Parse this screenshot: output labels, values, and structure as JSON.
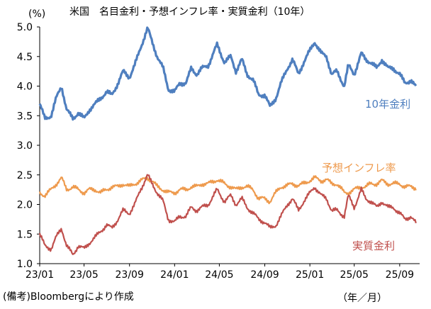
{
  "chart_data": {
    "type": "line",
    "title": "米国　名目金利・予想インフレ率・実質金利（10年）",
    "unit": "(%)",
    "source": "(備考)Bloombergにより作成",
    "xlabel": "（年／月）",
    "ylabel": "",
    "ylim": [
      1.0,
      5.0
    ],
    "yticks": [
      "5.0",
      "4.5",
      "4.0",
      "3.5",
      "3.0",
      "2.5",
      "2.0",
      "1.5",
      "1.0"
    ],
    "xticks": [
      "23/01",
      "23/05",
      "23/09",
      "24/01",
      "24/05",
      "24/09",
      "25/01",
      "25/05",
      "25/09"
    ],
    "grid": false,
    "series": [
      {
        "name": "10年金利",
        "color": "#4F7FBF",
        "points": [
          [
            "2023-01-01",
            3.7
          ],
          [
            "2023-01-15",
            3.45
          ],
          [
            "2023-02-01",
            3.5
          ],
          [
            "2023-02-15",
            3.8
          ],
          [
            "2023-03-01",
            4.0
          ],
          [
            "2023-03-15",
            3.6
          ],
          [
            "2023-04-01",
            3.45
          ],
          [
            "2023-04-15",
            3.55
          ],
          [
            "2023-05-01",
            3.45
          ],
          [
            "2023-05-15",
            3.6
          ],
          [
            "2023-06-01",
            3.7
          ],
          [
            "2023-06-15",
            3.8
          ],
          [
            "2023-07-01",
            3.9
          ],
          [
            "2023-07-15",
            3.85
          ],
          [
            "2023-08-01",
            4.05
          ],
          [
            "2023-08-15",
            4.25
          ],
          [
            "2023-09-01",
            4.15
          ],
          [
            "2023-09-15",
            4.35
          ],
          [
            "2023-10-01",
            4.65
          ],
          [
            "2023-10-20",
            4.98
          ],
          [
            "2023-11-01",
            4.75
          ],
          [
            "2023-11-15",
            4.5
          ],
          [
            "2023-12-01",
            4.3
          ],
          [
            "2023-12-15",
            3.95
          ],
          [
            "2024-01-01",
            3.9
          ],
          [
            "2024-01-15",
            4.05
          ],
          [
            "2024-02-01",
            4.05
          ],
          [
            "2024-02-15",
            4.3
          ],
          [
            "2024-03-01",
            4.2
          ],
          [
            "2024-03-15",
            4.3
          ],
          [
            "2024-04-01",
            4.35
          ],
          [
            "2024-04-25",
            4.7
          ],
          [
            "2024-05-15",
            4.4
          ],
          [
            "2024-06-01",
            4.5
          ],
          [
            "2024-06-15",
            4.25
          ],
          [
            "2024-07-01",
            4.45
          ],
          [
            "2024-07-15",
            4.2
          ],
          [
            "2024-08-01",
            4.1
          ],
          [
            "2024-08-15",
            3.85
          ],
          [
            "2024-09-01",
            3.85
          ],
          [
            "2024-09-15",
            3.65
          ],
          [
            "2024-10-01",
            3.8
          ],
          [
            "2024-10-15",
            4.05
          ],
          [
            "2024-11-01",
            4.3
          ],
          [
            "2024-11-15",
            4.45
          ],
          [
            "2024-12-01",
            4.2
          ],
          [
            "2024-12-15",
            4.4
          ],
          [
            "2025-01-14",
            4.75
          ],
          [
            "2025-02-01",
            4.55
          ],
          [
            "2025-02-15",
            4.5
          ],
          [
            "2025-03-01",
            4.2
          ],
          [
            "2025-03-15",
            4.25
          ],
          [
            "2025-04-04",
            4.0
          ],
          [
            "2025-04-15",
            4.35
          ],
          [
            "2025-05-01",
            4.2
          ],
          [
            "2025-05-20",
            4.55
          ],
          [
            "2025-06-01",
            4.45
          ],
          [
            "2025-06-15",
            4.4
          ],
          [
            "2025-07-01",
            4.3
          ],
          [
            "2025-07-15",
            4.45
          ],
          [
            "2025-08-01",
            4.3
          ],
          [
            "2025-08-15",
            4.3
          ],
          [
            "2025-09-01",
            4.2
          ],
          [
            "2025-09-15",
            4.05
          ],
          [
            "2025-10-01",
            4.1
          ],
          [
            "2025-10-15",
            3.98
          ]
        ]
      },
      {
        "name": "予想インフレ率",
        "color": "#EE9A4D",
        "points": [
          [
            "2023-01-01",
            2.2
          ],
          [
            "2023-01-15",
            2.15
          ],
          [
            "2023-02-01",
            2.25
          ],
          [
            "2023-02-15",
            2.35
          ],
          [
            "2023-03-01",
            2.45
          ],
          [
            "2023-03-15",
            2.25
          ],
          [
            "2023-04-01",
            2.3
          ],
          [
            "2023-04-15",
            2.25
          ],
          [
            "2023-05-01",
            2.2
          ],
          [
            "2023-05-15",
            2.25
          ],
          [
            "2023-06-01",
            2.25
          ],
          [
            "2023-06-15",
            2.2
          ],
          [
            "2023-07-01",
            2.25
          ],
          [
            "2023-07-15",
            2.3
          ],
          [
            "2023-08-01",
            2.3
          ],
          [
            "2023-08-15",
            2.35
          ],
          [
            "2023-09-01",
            2.3
          ],
          [
            "2023-09-15",
            2.35
          ],
          [
            "2023-10-01",
            2.4
          ],
          [
            "2023-10-20",
            2.45
          ],
          [
            "2023-11-01",
            2.4
          ],
          [
            "2023-11-15",
            2.3
          ],
          [
            "2023-12-01",
            2.25
          ],
          [
            "2023-12-15",
            2.2
          ],
          [
            "2024-01-01",
            2.2
          ],
          [
            "2024-01-15",
            2.25
          ],
          [
            "2024-02-01",
            2.25
          ],
          [
            "2024-02-15",
            2.3
          ],
          [
            "2024-03-01",
            2.3
          ],
          [
            "2024-03-15",
            2.35
          ],
          [
            "2024-04-01",
            2.35
          ],
          [
            "2024-04-25",
            2.42
          ],
          [
            "2024-05-15",
            2.35
          ],
          [
            "2024-06-01",
            2.3
          ],
          [
            "2024-06-15",
            2.25
          ],
          [
            "2024-07-01",
            2.3
          ],
          [
            "2024-07-15",
            2.3
          ],
          [
            "2024-08-01",
            2.25
          ],
          [
            "2024-08-15",
            2.1
          ],
          [
            "2024-09-01",
            2.1
          ],
          [
            "2024-09-15",
            2.05
          ],
          [
            "2024-10-01",
            2.2
          ],
          [
            "2024-10-15",
            2.3
          ],
          [
            "2024-11-01",
            2.32
          ],
          [
            "2024-11-15",
            2.35
          ],
          [
            "2024-12-01",
            2.32
          ],
          [
            "2024-12-15",
            2.35
          ],
          [
            "2025-01-14",
            2.45
          ],
          [
            "2025-02-01",
            2.4
          ],
          [
            "2025-02-15",
            2.42
          ],
          [
            "2025-03-01",
            2.35
          ],
          [
            "2025-03-15",
            2.35
          ],
          [
            "2025-04-04",
            2.2
          ],
          [
            "2025-04-15",
            2.2
          ],
          [
            "2025-05-01",
            2.25
          ],
          [
            "2025-05-20",
            2.3
          ],
          [
            "2025-06-01",
            2.3
          ],
          [
            "2025-06-15",
            2.35
          ],
          [
            "2025-07-01",
            2.35
          ],
          [
            "2025-07-15",
            2.4
          ],
          [
            "2025-08-01",
            2.35
          ],
          [
            "2025-08-15",
            2.35
          ],
          [
            "2025-09-01",
            2.35
          ],
          [
            "2025-09-15",
            2.3
          ],
          [
            "2025-10-01",
            2.3
          ],
          [
            "2025-10-15",
            2.28
          ]
        ]
      },
      {
        "name": "実質金利",
        "color": "#C0504D",
        "points": [
          [
            "2023-01-01",
            1.5
          ],
          [
            "2023-01-15",
            1.3
          ],
          [
            "2023-02-01",
            1.25
          ],
          [
            "2023-02-15",
            1.45
          ],
          [
            "2023-03-01",
            1.6
          ],
          [
            "2023-03-15",
            1.3
          ],
          [
            "2023-04-01",
            1.15
          ],
          [
            "2023-04-15",
            1.3
          ],
          [
            "2023-05-01",
            1.25
          ],
          [
            "2023-05-15",
            1.35
          ],
          [
            "2023-06-01",
            1.45
          ],
          [
            "2023-06-15",
            1.55
          ],
          [
            "2023-07-01",
            1.65
          ],
          [
            "2023-07-15",
            1.6
          ],
          [
            "2023-08-01",
            1.75
          ],
          [
            "2023-08-15",
            1.9
          ],
          [
            "2023-09-01",
            1.85
          ],
          [
            "2023-09-15",
            2.0
          ],
          [
            "2023-10-01",
            2.25
          ],
          [
            "2023-10-20",
            2.5
          ],
          [
            "2023-11-01",
            2.35
          ],
          [
            "2023-11-15",
            2.2
          ],
          [
            "2023-12-01",
            2.05
          ],
          [
            "2023-12-15",
            1.75
          ],
          [
            "2024-01-01",
            1.7
          ],
          [
            "2024-01-15",
            1.8
          ],
          [
            "2024-02-01",
            1.8
          ],
          [
            "2024-02-15",
            1.95
          ],
          [
            "2024-03-01",
            1.9
          ],
          [
            "2024-03-15",
            1.95
          ],
          [
            "2024-04-01",
            2.0
          ],
          [
            "2024-04-25",
            2.25
          ],
          [
            "2024-05-15",
            2.05
          ],
          [
            "2024-06-01",
            2.15
          ],
          [
            "2024-06-15",
            2.0
          ],
          [
            "2024-07-01",
            2.1
          ],
          [
            "2024-07-15",
            1.95
          ],
          [
            "2024-08-01",
            1.85
          ],
          [
            "2024-08-15",
            1.75
          ],
          [
            "2024-09-01",
            1.7
          ],
          [
            "2024-09-15",
            1.6
          ],
          [
            "2024-10-01",
            1.65
          ],
          [
            "2024-10-15",
            1.8
          ],
          [
            "2024-11-01",
            2.0
          ],
          [
            "2024-11-15",
            2.1
          ],
          [
            "2024-12-01",
            1.9
          ],
          [
            "2024-12-15",
            2.05
          ],
          [
            "2025-01-14",
            2.3
          ],
          [
            "2025-02-01",
            2.15
          ],
          [
            "2025-02-15",
            2.1
          ],
          [
            "2025-03-01",
            1.9
          ],
          [
            "2025-03-15",
            1.9
          ],
          [
            "2025-04-04",
            1.8
          ],
          [
            "2025-04-15",
            2.15
          ],
          [
            "2025-05-01",
            1.95
          ],
          [
            "2025-05-20",
            2.25
          ],
          [
            "2025-06-01",
            2.1
          ],
          [
            "2025-06-15",
            2.05
          ],
          [
            "2025-07-01",
            1.95
          ],
          [
            "2025-07-15",
            2.05
          ],
          [
            "2025-08-01",
            1.95
          ],
          [
            "2025-08-15",
            1.95
          ],
          [
            "2025-09-01",
            1.85
          ],
          [
            "2025-09-15",
            1.75
          ],
          [
            "2025-10-01",
            1.8
          ],
          [
            "2025-10-15",
            1.68
          ]
        ]
      }
    ]
  }
}
